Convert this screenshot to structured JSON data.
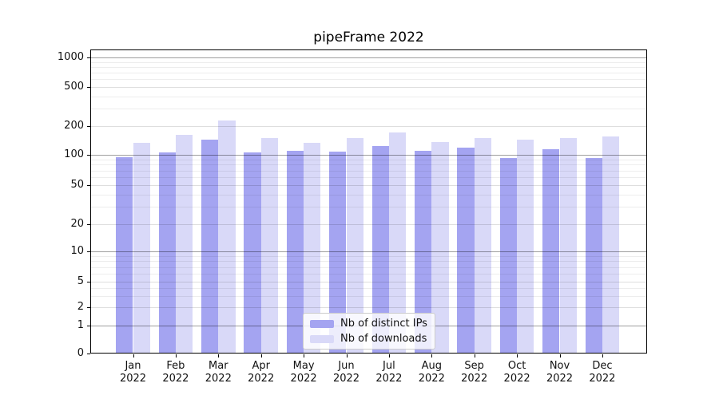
{
  "title": "pipeFrame 2022",
  "chart_data": {
    "type": "bar",
    "title": "pipeFrame 2022",
    "categories": [
      "Jan",
      "Feb",
      "Mar",
      "Apr",
      "May",
      "Jun",
      "Jul",
      "Aug",
      "Sep",
      "Oct",
      "Nov",
      "Dec"
    ],
    "x_tick_year_line": "2022",
    "series": [
      {
        "name": "Nb of distinct IPs",
        "color": "#a4a4f1",
        "values": [
          95,
          106,
          144,
          106,
          110,
          108,
          123,
          110,
          118,
          93,
          115,
          93
        ]
      },
      {
        "name": "Nb of downloads",
        "color": "#d9d9f8",
        "values": [
          134,
          162,
          228,
          150,
          134,
          150,
          170,
          136,
          151,
          145,
          150,
          156
        ]
      }
    ],
    "yscale": "log (symlog, linear near zero)",
    "y_ticks": [
      1000,
      500,
      200,
      100,
      50,
      20,
      10,
      5,
      2,
      1,
      0
    ],
    "y_major_decades": [
      1000,
      100,
      10,
      1
    ],
    "ylim": [
      0,
      1200
    ],
    "grid": true,
    "legend_position": "lower center inside plot"
  }
}
